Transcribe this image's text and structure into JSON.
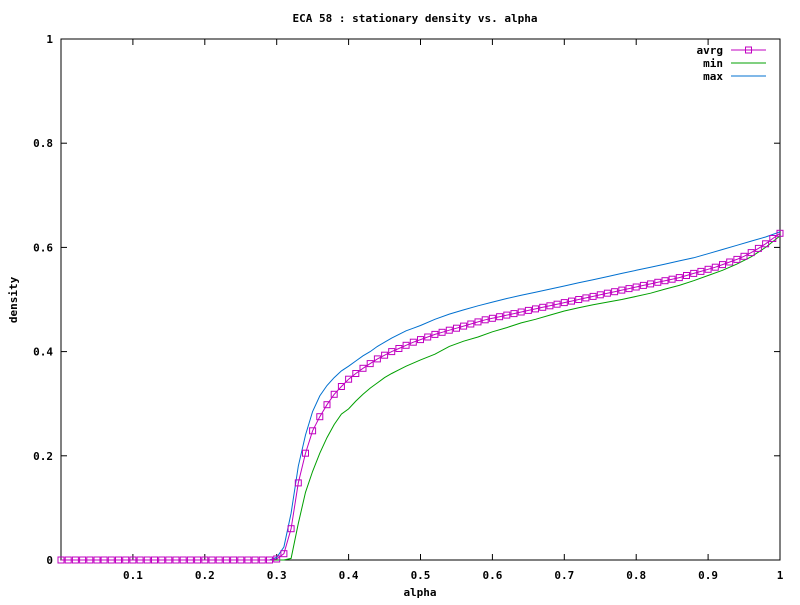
{
  "chart_data": {
    "type": "line",
    "title": "ECA 58 : stationary density vs. alpha",
    "xlabel": "alpha",
    "ylabel": "density",
    "xlim": [
      0.0,
      1.0
    ],
    "ylim": [
      0,
      1
    ],
    "x_ticks": [
      "0.1",
      "0.2",
      "0.3",
      "0.4",
      "0.5",
      "0.6",
      "0.7",
      "0.8",
      "0.9",
      "1"
    ],
    "y_ticks": [
      "0",
      "0.2",
      "0.4",
      "0.6",
      "0.8",
      "1"
    ],
    "legend_position": "top-right",
    "grid": false,
    "series": [
      {
        "name": "avrg",
        "color": "#c000c0",
        "marker": "square",
        "x": [
          0.0,
          0.01,
          0.02,
          0.03,
          0.04,
          0.05,
          0.06,
          0.07,
          0.08,
          0.09,
          0.1,
          0.11,
          0.12,
          0.13,
          0.14,
          0.15,
          0.16,
          0.17,
          0.18,
          0.19,
          0.2,
          0.21,
          0.22,
          0.23,
          0.24,
          0.25,
          0.26,
          0.27,
          0.28,
          0.29,
          0.3,
          0.31,
          0.32,
          0.33,
          0.34,
          0.35,
          0.36,
          0.37,
          0.38,
          0.39,
          0.4,
          0.41,
          0.42,
          0.43,
          0.44,
          0.45,
          0.46,
          0.47,
          0.48,
          0.49,
          0.5,
          0.51,
          0.52,
          0.53,
          0.54,
          0.55,
          0.56,
          0.57,
          0.58,
          0.59,
          0.6,
          0.61,
          0.62,
          0.63,
          0.64,
          0.65,
          0.66,
          0.67,
          0.68,
          0.69,
          0.7,
          0.71,
          0.72,
          0.73,
          0.74,
          0.75,
          0.76,
          0.77,
          0.78,
          0.79,
          0.8,
          0.81,
          0.82,
          0.83,
          0.84,
          0.85,
          0.86,
          0.87,
          0.88,
          0.89,
          0.9,
          0.91,
          0.92,
          0.93,
          0.94,
          0.95,
          0.96,
          0.97,
          0.98,
          0.99,
          1.0
        ],
        "values": [
          0,
          0,
          0,
          0,
          0,
          0,
          0,
          0,
          0,
          0,
          0,
          0,
          0,
          0,
          0,
          0,
          0,
          0,
          0,
          0,
          0,
          0,
          0,
          0,
          0,
          0,
          0,
          0,
          0,
          0,
          0.002,
          0.012,
          0.06,
          0.148,
          0.205,
          0.248,
          0.275,
          0.298,
          0.318,
          0.333,
          0.347,
          0.358,
          0.368,
          0.377,
          0.386,
          0.393,
          0.4,
          0.406,
          0.412,
          0.418,
          0.423,
          0.428,
          0.433,
          0.437,
          0.441,
          0.445,
          0.449,
          0.453,
          0.457,
          0.461,
          0.464,
          0.467,
          0.47,
          0.473,
          0.476,
          0.479,
          0.482,
          0.485,
          0.488,
          0.491,
          0.494,
          0.497,
          0.5,
          0.503,
          0.506,
          0.509,
          0.512,
          0.515,
          0.518,
          0.521,
          0.524,
          0.527,
          0.53,
          0.533,
          0.536,
          0.539,
          0.542,
          0.546,
          0.55,
          0.554,
          0.558,
          0.562,
          0.567,
          0.572,
          0.577,
          0.583,
          0.59,
          0.598,
          0.607,
          0.617,
          0.627
        ]
      },
      {
        "name": "min",
        "color": "#00a000",
        "marker": "none",
        "x": [
          0.0,
          0.29,
          0.3,
          0.31,
          0.32,
          0.33,
          0.34,
          0.35,
          0.36,
          0.37,
          0.38,
          0.39,
          0.4,
          0.41,
          0.42,
          0.43,
          0.44,
          0.45,
          0.46,
          0.47,
          0.48,
          0.49,
          0.5,
          0.52,
          0.54,
          0.56,
          0.58,
          0.6,
          0.62,
          0.64,
          0.66,
          0.68,
          0.7,
          0.72,
          0.74,
          0.76,
          0.78,
          0.8,
          0.82,
          0.84,
          0.86,
          0.88,
          0.9,
          0.92,
          0.94,
          0.96,
          0.98,
          1.0
        ],
        "values": [
          0,
          0,
          0,
          0,
          0.003,
          0.07,
          0.13,
          0.17,
          0.205,
          0.235,
          0.26,
          0.28,
          0.29,
          0.305,
          0.318,
          0.33,
          0.34,
          0.35,
          0.358,
          0.365,
          0.372,
          0.378,
          0.384,
          0.395,
          0.41,
          0.42,
          0.428,
          0.438,
          0.446,
          0.455,
          0.462,
          0.47,
          0.478,
          0.484,
          0.49,
          0.495,
          0.5,
          0.506,
          0.512,
          0.52,
          0.527,
          0.536,
          0.546,
          0.556,
          0.568,
          0.582,
          0.6,
          0.622
        ]
      },
      {
        "name": "max",
        "color": "#0070d0",
        "marker": "none",
        "x": [
          0.0,
          0.29,
          0.3,
          0.31,
          0.32,
          0.33,
          0.34,
          0.35,
          0.36,
          0.37,
          0.38,
          0.39,
          0.4,
          0.41,
          0.42,
          0.43,
          0.44,
          0.45,
          0.46,
          0.47,
          0.48,
          0.49,
          0.5,
          0.52,
          0.54,
          0.56,
          0.58,
          0.6,
          0.62,
          0.64,
          0.66,
          0.68,
          0.7,
          0.72,
          0.74,
          0.76,
          0.78,
          0.8,
          0.82,
          0.84,
          0.86,
          0.88,
          0.9,
          0.92,
          0.94,
          0.96,
          0.98,
          1.0
        ],
        "values": [
          0,
          0,
          0.005,
          0.025,
          0.09,
          0.18,
          0.24,
          0.285,
          0.315,
          0.335,
          0.35,
          0.363,
          0.372,
          0.382,
          0.392,
          0.4,
          0.41,
          0.418,
          0.426,
          0.433,
          0.44,
          0.445,
          0.45,
          0.462,
          0.472,
          0.48,
          0.488,
          0.495,
          0.502,
          0.508,
          0.514,
          0.52,
          0.526,
          0.532,
          0.538,
          0.544,
          0.55,
          0.556,
          0.562,
          0.568,
          0.574,
          0.58,
          0.588,
          0.596,
          0.604,
          0.612,
          0.62,
          0.63
        ]
      }
    ]
  }
}
